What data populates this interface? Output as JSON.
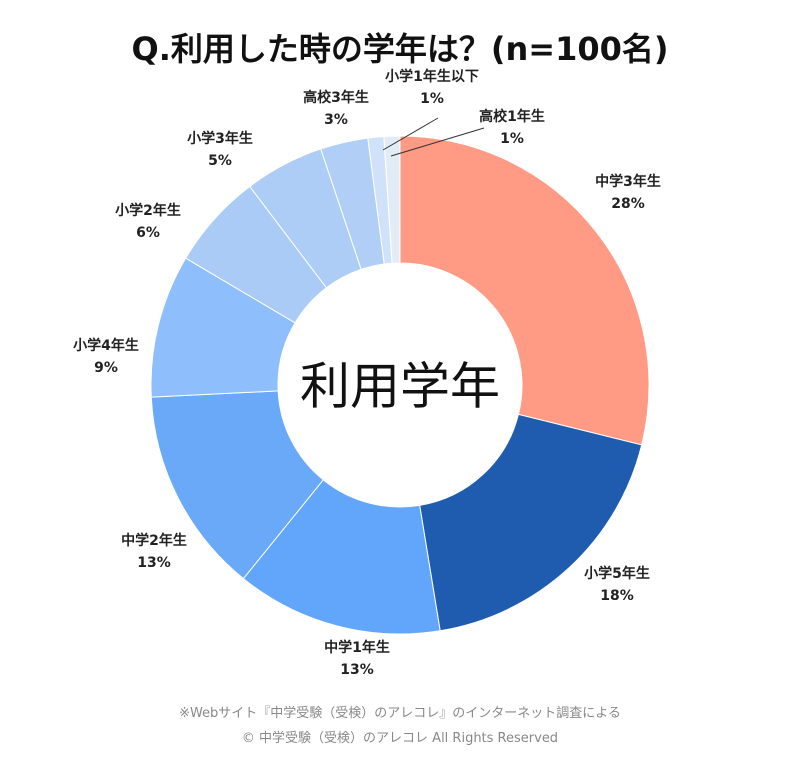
{
  "chart_data": {
    "type": "pie",
    "title": "Q.利用した時の学年は？(n=100名)",
    "center_label": "利用学年",
    "slices": [
      {
        "label": "中学3年生",
        "value": 28,
        "value_label": "28%",
        "color": "#FF9A85"
      },
      {
        "label": "小学5年生",
        "value": 18,
        "value_label": "18%",
        "color": "#1F5BAE"
      },
      {
        "label": "中学1年生",
        "value": 13,
        "value_label": "13%",
        "color": "#62A6FB"
      },
      {
        "label": "中学2年生",
        "value": 13,
        "value_label": "13%",
        "color": "#6AA8F8"
      },
      {
        "label": "小学4年生",
        "value": 9,
        "value_label": "9%",
        "color": "#8EBEFB"
      },
      {
        "label": "小学2年生",
        "value": 6,
        "value_label": "6%",
        "color": "#A9CBF6"
      },
      {
        "label": "小学3年生",
        "value": 5,
        "value_label": "5%",
        "color": "#ADCDF7"
      },
      {
        "label": "高校3年生",
        "value": 3,
        "value_label": "3%",
        "color": "#B1CFF6"
      },
      {
        "label": "小学1年生以下",
        "value": 1,
        "value_label": "1%",
        "color": "#D0E2FA"
      },
      {
        "label": "高校1年生",
        "value": 1,
        "value_label": "1%",
        "color": "#E2ECF7"
      }
    ]
  },
  "footer": {
    "note": "※Webサイト『中学受験（受検）のアレコレ』のインターネット調査による",
    "copyright": "© 中学受験（受検）のアレコレ All Rights Reserved"
  }
}
